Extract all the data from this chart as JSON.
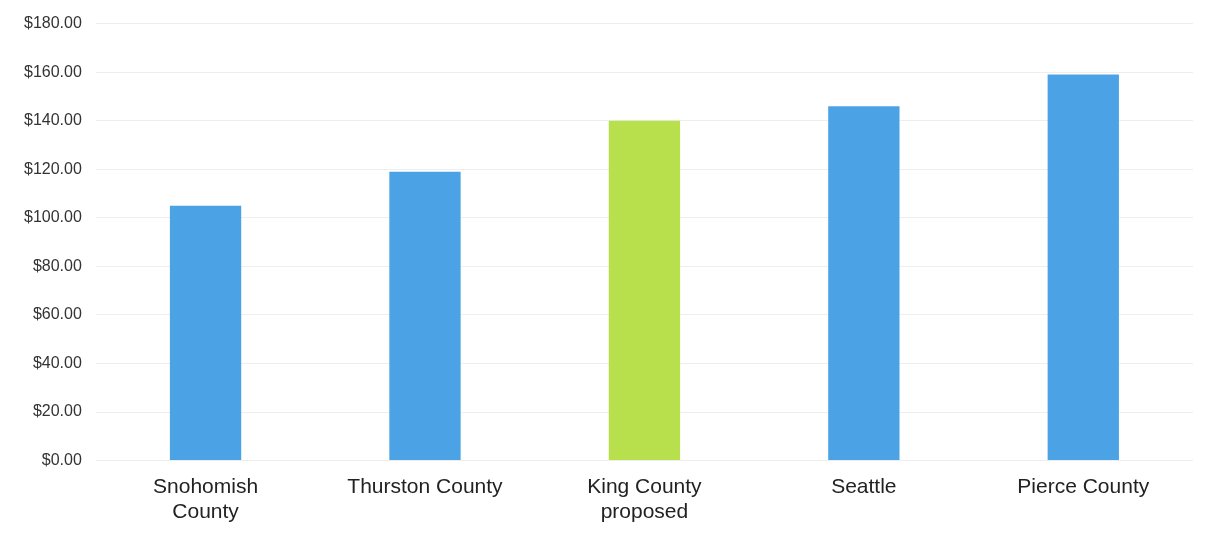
{
  "chart_data": {
    "type": "bar",
    "categories": [
      "Snohomish County",
      "Thurston County",
      "King County proposed",
      "Seattle",
      "Pierce County"
    ],
    "values": [
      105,
      119,
      140,
      146,
      159
    ],
    "colors": [
      "#4ba3e6",
      "#4ba3e6",
      "#b8e04c",
      "#4ba3e6",
      "#4ba3e6"
    ],
    "ylim": [
      0,
      180
    ],
    "yticks": [
      {
        "value": 0,
        "label": "$0.00"
      },
      {
        "value": 20,
        "label": "$20.00"
      },
      {
        "value": 40,
        "label": "$40.00"
      },
      {
        "value": 60,
        "label": "$60.00"
      },
      {
        "value": 80,
        "label": "$80.00"
      },
      {
        "value": 100,
        "label": "$100.00"
      },
      {
        "value": 120,
        "label": "$120.00"
      },
      {
        "value": 140,
        "label": "$140.00"
      },
      {
        "value": 160,
        "label": "$160.00"
      },
      {
        "value": 180,
        "label": "$180.00"
      }
    ],
    "grid": "y",
    "legend": false
  }
}
